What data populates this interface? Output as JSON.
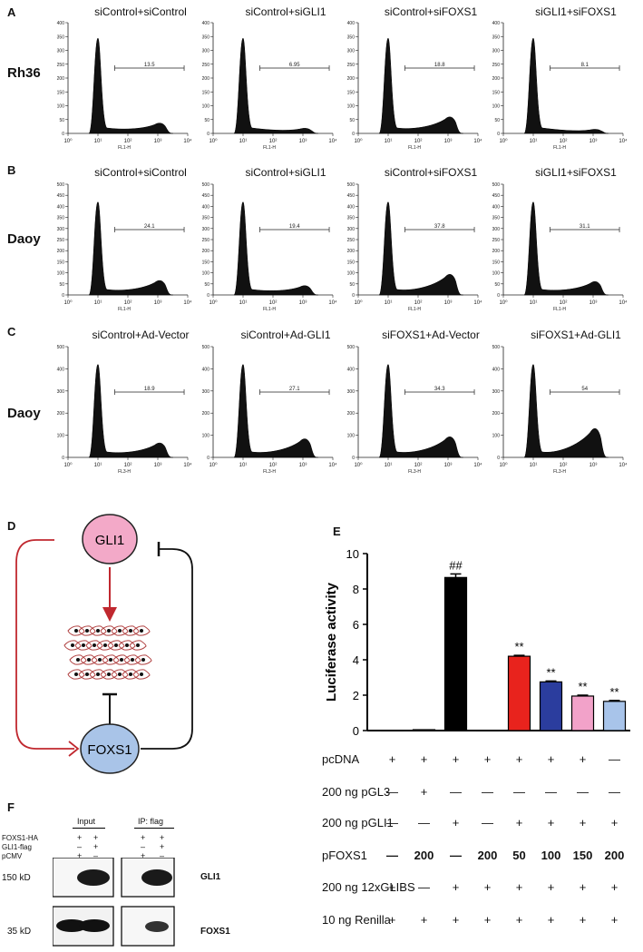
{
  "panel_labels": [
    "A",
    "B",
    "C",
    "D",
    "E",
    "F"
  ],
  "flow": {
    "rows": [
      {
        "panel": "A",
        "cell_line": "Rh36",
        "axis_label": "FL1-H",
        "ymax": 400,
        "yticks": [
          "0",
          "50",
          "100",
          "150",
          "200",
          "250",
          "300",
          "350",
          "400"
        ],
        "peak_frac": 0.86,
        "histograms": [
          {
            "title": "siControl+siControl",
            "gate_value": "13.5",
            "g2_frac": 0.1
          },
          {
            "title": "siControl+siGLI1",
            "gate_value": "6.95",
            "g2_frac": 0.05
          },
          {
            "title": "siControl+siFOXS1",
            "gate_value": "18.8",
            "g2_frac": 0.16
          },
          {
            "title": "siGLI1+siFOXS1",
            "gate_value": "8.1",
            "g2_frac": 0.04
          }
        ]
      },
      {
        "panel": "B",
        "cell_line": "Daoy",
        "axis_label": "FL1-H",
        "ymax": 500,
        "yticks": [
          "0",
          "50",
          "100",
          "150",
          "200",
          "250",
          "300",
          "350",
          "400",
          "450",
          "500"
        ],
        "peak_frac": 0.84,
        "histograms": [
          {
            "title": "siControl+siControl",
            "gate_value": "24.1",
            "g2_frac": 0.14
          },
          {
            "title": "siControl+siGLI1",
            "gate_value": "19.4",
            "g2_frac": 0.09
          },
          {
            "title": "siControl+siFOXS1",
            "gate_value": "37.8",
            "g2_frac": 0.2
          },
          {
            "title": "siGLI1+siFOXS1",
            "gate_value": "31.1",
            "g2_frac": 0.13
          }
        ]
      },
      {
        "panel": "C",
        "cell_line": "Daoy",
        "axis_label": "FL3-H",
        "ymax": 500,
        "yticks": [
          "0",
          "100",
          "200",
          "300",
          "400",
          "500"
        ],
        "peak_frac": 0.84,
        "histograms": [
          {
            "title": "siControl+Ad-Vector",
            "gate_value": "18.9",
            "g2_frac": 0.14
          },
          {
            "title": "siControl+Ad-GLI1",
            "gate_value": "27.1",
            "g2_frac": 0.18
          },
          {
            "title": "siFOXS1+Ad-Vector",
            "gate_value": "34.3",
            "g2_frac": 0.2
          },
          {
            "title": "siFOXS1+Ad-GLI1",
            "gate_value": "54",
            "g2_frac": 0.28
          }
        ]
      }
    ],
    "xticks": [
      "10⁰",
      "10¹",
      "10²",
      "10³",
      "10⁴"
    ]
  },
  "diagram": {
    "node_top": "GLI1",
    "node_bottom": "FOXS1",
    "colors": {
      "gli1_fill": "#f3a9c8",
      "foxs1_fill": "#a9c4e8",
      "arrow": "#c0282f",
      "cell": "#b04040"
    }
  },
  "chart_data": {
    "type": "bar",
    "ylabel": "Luciferase activity",
    "ylim": [
      0,
      10
    ],
    "yticks": [
      "0",
      "2",
      "4",
      "6",
      "8",
      "10"
    ],
    "values": [
      0.02,
      0.05,
      8.65,
      0.02,
      4.2,
      2.75,
      1.95,
      1.65
    ],
    "errors": [
      0,
      0,
      0.2,
      0,
      0.05,
      0.05,
      0.05,
      0.05
    ],
    "bar_colors": [
      "#000000",
      "#000000",
      "#000000",
      "#000000",
      "#e8231d",
      "#2b3d9e",
      "#f2a2c9",
      "#a8c4ea"
    ],
    "annotations": [
      "",
      "",
      "##",
      "",
      "**",
      "**",
      "**",
      "**"
    ]
  },
  "treatment_table": {
    "rows": [
      {
        "label": "pcDNA",
        "cells": [
          "+",
          "+",
          "+",
          "+",
          "+",
          "+",
          "+",
          "—"
        ],
        "bold": false
      },
      {
        "label": "200 ng pGL3",
        "cells": [
          "—",
          "+",
          "—",
          "—",
          "—",
          "—",
          "—",
          "—"
        ],
        "bold": false
      },
      {
        "label": "200 ng pGLI1",
        "cells": [
          "—",
          "—",
          "+",
          "—",
          "+",
          "+",
          "+",
          "+"
        ],
        "bold": false
      },
      {
        "label": "pFOXS1",
        "cells": [
          "—",
          "200",
          "—",
          "200",
          "50",
          "100",
          "150",
          "200"
        ],
        "bold": true
      },
      {
        "label": "200 ng 12xGLIBS",
        "cells": [
          "+",
          "—",
          "+",
          "+",
          "+",
          "+",
          "+",
          "+"
        ],
        "bold": false
      },
      {
        "label": "10 ng Renilla",
        "cells": [
          "+",
          "+",
          "+",
          "+",
          "+",
          "+",
          "+",
          "+"
        ],
        "bold": false
      }
    ]
  },
  "western": {
    "header_input": "Input",
    "header_ip": "IP: flag",
    "conditions": [
      {
        "label": "FOXS1-HA",
        "cells": [
          "+",
          "+",
          "+",
          "+"
        ]
      },
      {
        "label": "GLI1-flag",
        "cells": [
          "–",
          "+",
          "–",
          "+"
        ]
      },
      {
        "label": "pCMV",
        "cells": [
          "+",
          "–",
          "+",
          "–"
        ]
      }
    ],
    "size_markers": [
      "150 kD",
      "35 kD"
    ],
    "proteins": [
      "GLI1",
      "FOXS1"
    ]
  }
}
